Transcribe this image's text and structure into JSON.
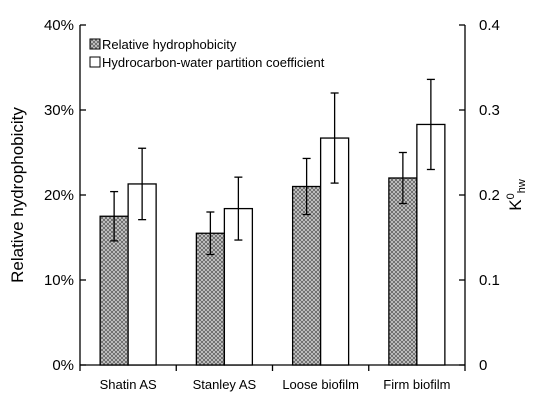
{
  "chart_data": {
    "type": "bar",
    "categories": [
      "Shatin AS",
      "Stanley AS",
      "Loose biofilm",
      "Firm biofilm"
    ],
    "series": [
      {
        "name": "Relative hydrophobicity",
        "axis": "left",
        "values": [
          17.5,
          15.5,
          21.0,
          22.0
        ],
        "error": [
          2.9,
          2.5,
          3.3,
          3.0
        ],
        "fill": "hatched-gray"
      },
      {
        "name": "Hydrocarbon-water partition coefficient",
        "axis": "right",
        "values": [
          0.213,
          0.184,
          0.267,
          0.283
        ],
        "error": [
          0.042,
          0.037,
          0.053,
          0.053
        ],
        "fill": "white"
      }
    ],
    "ylabel": "Relative hydrophobicity",
    "ylabel_right": "K0hw",
    "ylim": [
      0,
      40
    ],
    "ylim_right": [
      0,
      0.4
    ],
    "yticks": [
      "0%",
      "10%",
      "20%",
      "30%",
      "40%"
    ],
    "yticks_right": [
      "0",
      "0.1",
      "0.2",
      "0.3",
      "0.4"
    ],
    "legend_position": "top-left",
    "grid": false
  },
  "colors": {
    "hatch_dark": "#707070",
    "hatch_light": "#d9d9d9",
    "bar_outline": "#000000",
    "open_bar_fill": "#ffffff"
  }
}
